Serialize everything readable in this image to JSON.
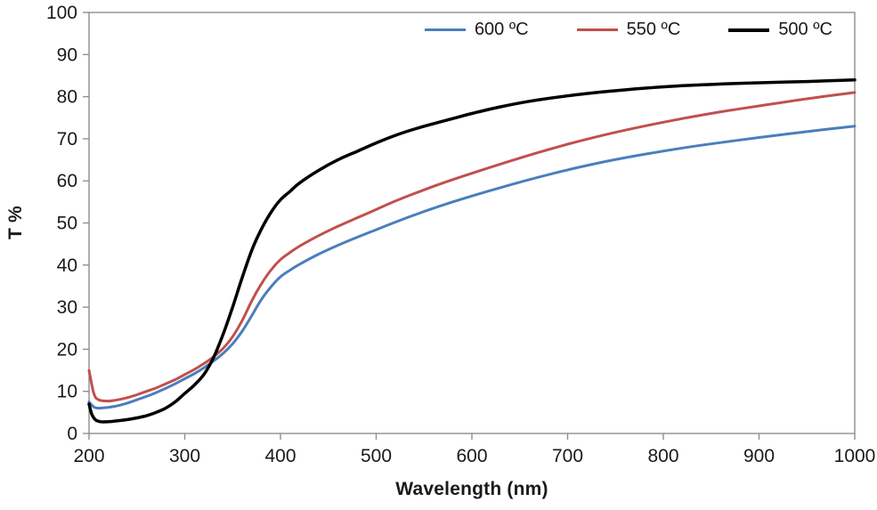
{
  "frame": {
    "border_color": "#8f8f8f",
    "text_color": "#1a1a1a",
    "background": "#ffffff"
  },
  "chart_data": {
    "type": "line",
    "title": "",
    "xlabel": "Wavelength (nm)",
    "ylabel": "T %",
    "xlim": [
      200,
      1000
    ],
    "ylim": [
      0,
      100
    ],
    "x_ticks": [
      200,
      300,
      400,
      500,
      600,
      700,
      800,
      900,
      1000
    ],
    "y_ticks": [
      0,
      10,
      20,
      30,
      40,
      50,
      60,
      70,
      80,
      90,
      100
    ],
    "grid": false,
    "legend_position": "top-right-inside",
    "series": [
      {
        "name": "600 ºC",
        "color": "#4a7ebb",
        "line_width": 3,
        "x": [
          200,
          205,
          210,
          220,
          230,
          240,
          250,
          260,
          270,
          280,
          290,
          300,
          310,
          320,
          330,
          340,
          350,
          360,
          370,
          380,
          390,
          400,
          410,
          420,
          440,
          460,
          480,
          500,
          520,
          540,
          560,
          580,
          600,
          630,
          660,
          700,
          740,
          780,
          820,
          860,
          900,
          950,
          1000
        ],
        "y": [
          7.5,
          6.3,
          6.0,
          6.2,
          6.6,
          7.2,
          8.0,
          8.8,
          9.7,
          10.7,
          11.8,
          13.0,
          14.2,
          15.6,
          17.2,
          19.0,
          21.3,
          24.3,
          28.0,
          31.8,
          34.8,
          37.2,
          38.8,
          40.2,
          42.6,
          44.7,
          46.6,
          48.4,
          50.2,
          51.9,
          53.5,
          55.0,
          56.4,
          58.4,
          60.3,
          62.6,
          64.6,
          66.3,
          67.8,
          69.1,
          70.3,
          71.7,
          73.0
        ]
      },
      {
        "name": "550 ºC",
        "color": "#c0504d",
        "line_width": 3,
        "x": [
          200,
          205,
          210,
          220,
          230,
          240,
          250,
          260,
          270,
          280,
          290,
          300,
          310,
          320,
          330,
          340,
          350,
          360,
          370,
          380,
          390,
          400,
          410,
          420,
          440,
          460,
          480,
          500,
          520,
          540,
          560,
          580,
          600,
          630,
          660,
          700,
          740,
          780,
          820,
          860,
          900,
          950,
          1000
        ],
        "y": [
          15.0,
          9.5,
          8.0,
          7.7,
          8.0,
          8.5,
          9.2,
          10.0,
          10.8,
          11.8,
          12.8,
          14.0,
          15.2,
          16.6,
          18.2,
          20.2,
          23.0,
          26.8,
          31.5,
          35.5,
          38.8,
          41.3,
          43.0,
          44.5,
          47.0,
          49.2,
          51.2,
          53.2,
          55.2,
          57.0,
          58.7,
          60.3,
          61.8,
          64.0,
          66.1,
          68.7,
          71.0,
          73.0,
          74.8,
          76.4,
          77.8,
          79.5,
          81.0
        ]
      },
      {
        "name": "500 ºC",
        "color": "#000000",
        "line_width": 3.5,
        "x": [
          200,
          203,
          207,
          212,
          220,
          230,
          240,
          250,
          260,
          270,
          280,
          290,
          300,
          310,
          320,
          330,
          340,
          350,
          360,
          370,
          380,
          390,
          400,
          410,
          420,
          440,
          460,
          480,
          500,
          520,
          540,
          560,
          580,
          600,
          630,
          660,
          700,
          740,
          780,
          820,
          860,
          900,
          950,
          1000
        ],
        "y": [
          7.0,
          4.5,
          3.2,
          2.8,
          2.8,
          3.0,
          3.3,
          3.7,
          4.2,
          5.0,
          6.0,
          7.5,
          9.5,
          11.5,
          14.0,
          18.0,
          23.5,
          30.0,
          37.0,
          43.5,
          48.5,
          52.5,
          55.5,
          57.5,
          59.5,
          62.5,
          65.0,
          67.0,
          69.0,
          70.8,
          72.3,
          73.6,
          74.8,
          76.0,
          77.6,
          78.9,
          80.2,
          81.2,
          82.0,
          82.6,
          83.0,
          83.3,
          83.6,
          84.0
        ]
      }
    ]
  }
}
